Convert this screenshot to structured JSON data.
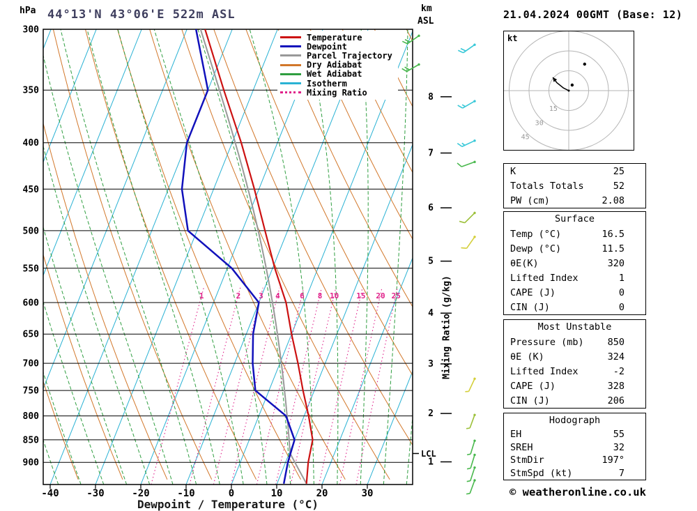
{
  "header": {
    "pressure_unit": "hPa",
    "station_title": "44°13'N 43°06'E 522m ASL",
    "km_label": "km",
    "asl_label": "ASL",
    "datetime": "21.04.2024 00GMT (Base: 12)"
  },
  "axes": {
    "x_title": "Dewpoint / Temperature (°C)",
    "right_title": "Mixing Ratio (g/kg)",
    "lcl_label": "LCL",
    "hodograph_unit": "kt"
  },
  "legend": {
    "items": [
      {
        "key": "temperature",
        "label": "Temperature"
      },
      {
        "key": "dewpoint",
        "label": "Dewpoint"
      },
      {
        "key": "parcel",
        "label": "Parcel Trajectory"
      },
      {
        "key": "dry_adiabat",
        "label": "Dry Adiabat"
      },
      {
        "key": "wet_adiabat",
        "label": "Wet Adiabat"
      },
      {
        "key": "isotherm",
        "label": "Isotherm"
      },
      {
        "key": "mixing_ratio",
        "label": "Mixing Ratio"
      }
    ]
  },
  "panel": {
    "indices": {
      "rows": [
        [
          "K",
          "25"
        ],
        [
          "Totals Totals",
          "52"
        ],
        [
          "PW (cm)",
          "2.08"
        ]
      ]
    },
    "surface": {
      "title": "Surface",
      "rows": [
        [
          "Temp (°C)",
          "16.5"
        ],
        [
          "Dewp (°C)",
          "11.5"
        ],
        [
          "θE(K)",
          "320"
        ],
        [
          "Lifted Index",
          "1"
        ],
        [
          "CAPE (J)",
          "0"
        ],
        [
          "CIN (J)",
          "0"
        ]
      ]
    },
    "most_unstable": {
      "title": "Most Unstable",
      "rows": [
        [
          "Pressure (mb)",
          "850"
        ],
        [
          "θE (K)",
          "324"
        ],
        [
          "Lifted Index",
          "-2"
        ],
        [
          "CAPE (J)",
          "328"
        ],
        [
          "CIN (J)",
          "206"
        ]
      ]
    },
    "hodograph_stats": {
      "title": "Hodograph",
      "rows": [
        [
          "EH",
          "55"
        ],
        [
          "SREH",
          "32"
        ],
        [
          "StmDir",
          "197°"
        ],
        [
          "StmSpd (kt)",
          "7"
        ]
      ]
    }
  },
  "footer": {
    "credit": "© weatheronline.co.uk"
  },
  "chart_data": {
    "type": "skewt_log_p_sounding",
    "title": "44°13'N 43°06'E 522m ASL",
    "valid_time": "21.04.2024 00GMT (Base: 12)",
    "colors": {
      "temperature": "#cc1111",
      "dewpoint": "#1111bb",
      "parcel": "#999999",
      "dry_adiabat": "#d2772a",
      "wet_adiabat": "#2f9e40",
      "isotherm": "#2ab2d4",
      "mixing_ratio": "#e0218a"
    },
    "pressure_ticks_hPa": [
      300,
      350,
      400,
      450,
      500,
      550,
      600,
      650,
      700,
      750,
      800,
      850,
      900
    ],
    "temperature_ticks_C": [
      -40,
      -30,
      -20,
      -10,
      0,
      10,
      20,
      30
    ],
    "km_asl_ticks": [
      1,
      2,
      3,
      4,
      5,
      6,
      7,
      8
    ],
    "mixing_ratio_lines_g_kg": [
      1,
      2,
      3,
      4,
      6,
      8,
      10,
      15,
      20,
      25
    ],
    "pressure_range_hPa": [
      300,
      952
    ],
    "lcl_hPa": 880,
    "sounding": {
      "pressure_hPa": [
        950,
        900,
        850,
        800,
        750,
        700,
        650,
        600,
        550,
        500,
        450,
        400,
        350,
        300
      ],
      "temperature_C": [
        16.5,
        15.0,
        14.0,
        11.0,
        7.5,
        4.0,
        0.0,
        -4.0,
        -9.5,
        -15.0,
        -21.0,
        -28.0,
        -36.5,
        -46.0
      ],
      "dewpoint_C": [
        11.5,
        10.5,
        10.0,
        6.0,
        -3.0,
        -6.0,
        -8.5,
        -10.0,
        -19.0,
        -32.0,
        -37.0,
        -40.0,
        -40.0,
        -48.0
      ]
    },
    "surface_parcel": {
      "pressure_hPa": 950,
      "temperature_C": 16.5,
      "dewpoint_C": 11.5
    },
    "wind_barbs": [
      {
        "pressure_hPa": 305,
        "dir_deg": 235,
        "speed_kt": 20,
        "color": "#49b84d",
        "column": "inner"
      },
      {
        "pressure_hPa": 328,
        "dir_deg": 240,
        "speed_kt": 20,
        "color": "#49b84d",
        "column": "inner"
      },
      {
        "pressure_hPa": 312,
        "dir_deg": 235,
        "speed_kt": 20,
        "color": "#38c8d8",
        "column": "outer"
      },
      {
        "pressure_hPa": 360,
        "dir_deg": 240,
        "speed_kt": 15,
        "color": "#38c8d8",
        "column": "outer"
      },
      {
        "pressure_hPa": 398,
        "dir_deg": 245,
        "speed_kt": 15,
        "color": "#38c8d8",
        "column": "outer"
      },
      {
        "pressure_hPa": 420,
        "dir_deg": 250,
        "speed_kt": 10,
        "color": "#49b84d",
        "column": "outer"
      },
      {
        "pressure_hPa": 478,
        "dir_deg": 225,
        "speed_kt": 10,
        "color": "#9cc03a",
        "column": "outer"
      },
      {
        "pressure_hPa": 508,
        "dir_deg": 215,
        "speed_kt": 10,
        "color": "#d4cf3a",
        "column": "outer"
      },
      {
        "pressure_hPa": 728,
        "dir_deg": 205,
        "speed_kt": 5,
        "color": "#d4cf3a",
        "column": "outer"
      },
      {
        "pressure_hPa": 798,
        "dir_deg": 200,
        "speed_kt": 5,
        "color": "#9cc03a",
        "column": "outer"
      },
      {
        "pressure_hPa": 852,
        "dir_deg": 197,
        "speed_kt": 5,
        "color": "#49b84d",
        "column": "outer"
      },
      {
        "pressure_hPa": 883,
        "dir_deg": 197,
        "speed_kt": 5,
        "color": "#49b84d",
        "column": "outer"
      },
      {
        "pressure_hPa": 912,
        "dir_deg": 198,
        "speed_kt": 5,
        "color": "#49b84d",
        "column": "outer"
      },
      {
        "pressure_hPa": 942,
        "dir_deg": 200,
        "speed_kt": 7,
        "color": "#49b84d",
        "column": "outer"
      }
    ],
    "hodograph": {
      "rings_kt": [
        15,
        30,
        45
      ],
      "trace_kt": [
        [
          0,
          0
        ],
        [
          -4,
          2
        ],
        [
          -9,
          6
        ],
        [
          -12,
          10
        ]
      ],
      "dots_kt": [
        [
          2.6,
          4.2
        ],
        [
          12,
          20
        ]
      ]
    }
  }
}
